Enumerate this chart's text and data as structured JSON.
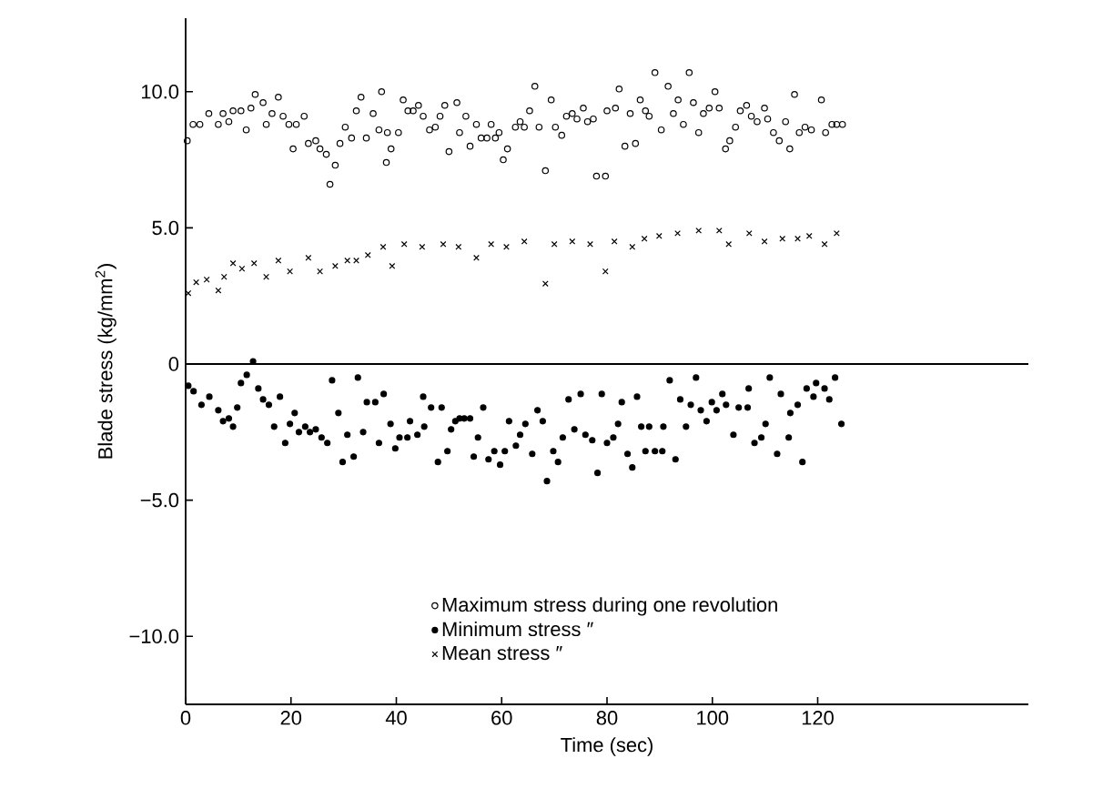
{
  "chart_data": {
    "type": "scatter",
    "xlabel": "Time (sec)",
    "ylabel": "Blade stress (kg/mm$^{2}$)",
    "xlim": [
      0,
      160
    ],
    "ylim": [
      -12.5,
      12.7
    ],
    "xticks": [
      0,
      20,
      40,
      60,
      80,
      100,
      120
    ],
    "yticks": [
      {
        "value": 10,
        "label": "10.0"
      },
      {
        "value": 5,
        "label": "5.0"
      },
      0,
      {
        "value": -5,
        "label": "−5.0"
      },
      {
        "value": -10,
        "label": "−10.0"
      }
    ],
    "legend": "bottom",
    "grid": false,
    "ref_lines": [
      {
        "axis": "y",
        "value": 0,
        "color": "#000000"
      }
    ],
    "series": [
      {
        "name": "Maximum stress during one revolution",
        "color": "#000000",
        "marker": "circle_open",
        "x": [
          0.3,
          1.4,
          2.7,
          4.4,
          6.2,
          7.1,
          8.2,
          9.0,
          10.5,
          11.5,
          12.4,
          13.2,
          14.7,
          15.3,
          16.4,
          17.6,
          18.5,
          19.6,
          20.4,
          21.0,
          22.5,
          23.3,
          24.7,
          25.5,
          26.7,
          27.4,
          28.4,
          29.3,
          30.3,
          31.5,
          32.4,
          33.3,
          34.3,
          35.6,
          36.7,
          37.2,
          38.1,
          38.3,
          39.0,
          40.4,
          41.3,
          42.2,
          43.2,
          44.2,
          45.1,
          46.3,
          47.4,
          48.3,
          49.2,
          50.0,
          51.5,
          52.0,
          53.2,
          54.0,
          55.2,
          56.1,
          57.2,
          58.0,
          58.8,
          59.5,
          60.3,
          61.1,
          62.6,
          63.5,
          64.3,
          65.3,
          66.3,
          67.1,
          68.3,
          69.4,
          70.2,
          71.4,
          72.3,
          73.4,
          74.3,
          75.5,
          76.3,
          77.4,
          78.0,
          79.7,
          80.0,
          81.6,
          82.3,
          83.4,
          84.4,
          85.4,
          86.3,
          87.3,
          88.0,
          89.1,
          90.3,
          91.6,
          92.6,
          93.5,
          94.5,
          95.6,
          96.4,
          97.4,
          98.3,
          99.4,
          100.5,
          101.3,
          102.5,
          103.3,
          104.4,
          105.3,
          106.5,
          107.4,
          108.5,
          109.9,
          110.5,
          111.6,
          112.7,
          113.9,
          114.7,
          115.6,
          116.5,
          117.6,
          118.8,
          120.7,
          121.5,
          122.7,
          123.6,
          124.7
        ],
        "values": [
          8.2,
          8.8,
          8.8,
          9.2,
          8.8,
          9.2,
          8.9,
          9.3,
          9.3,
          8.6,
          9.4,
          9.9,
          9.6,
          8.8,
          9.2,
          9.8,
          9.1,
          8.8,
          7.9,
          8.8,
          9.1,
          8.1,
          8.2,
          7.9,
          7.7,
          6.6,
          7.3,
          8.1,
          8.7,
          8.3,
          9.3,
          9.8,
          8.3,
          9.2,
          8.6,
          10.0,
          7.4,
          8.5,
          7.9,
          8.5,
          9.7,
          9.3,
          9.3,
          9.5,
          9.1,
          8.6,
          8.7,
          9.1,
          9.5,
          7.8,
          9.6,
          8.5,
          9.1,
          8.0,
          8.8,
          8.3,
          8.3,
          8.8,
          8.3,
          8.5,
          7.5,
          7.9,
          8.7,
          8.9,
          8.7,
          9.3,
          10.2,
          8.7,
          7.1,
          9.7,
          8.7,
          8.4,
          9.1,
          9.2,
          9.0,
          9.4,
          8.9,
          9.0,
          6.9,
          6.9,
          9.3,
          9.4,
          10.1,
          8.0,
          9.2,
          8.1,
          9.7,
          9.3,
          9.1,
          10.7,
          8.6,
          10.2,
          9.2,
          9.7,
          8.8,
          10.7,
          9.6,
          8.5,
          9.2,
          9.4,
          10.0,
          9.4,
          7.9,
          8.2,
          8.7,
          9.3,
          9.5,
          9.1,
          8.9,
          9.4,
          9.0,
          8.5,
          8.2,
          8.9,
          7.9,
          9.9,
          8.5,
          8.7,
          8.6,
          9.7,
          8.5,
          8.8,
          8.8,
          8.8
        ]
      },
      {
        "name": "Minimum stress ″",
        "color": "#000000",
        "marker": "circle",
        "x": [
          0.5,
          1.5,
          3.0,
          4.5,
          6.2,
          7.1,
          8.2,
          9.0,
          9.8,
          10.5,
          11.6,
          12.8,
          13.8,
          14.7,
          15.8,
          16.8,
          17.9,
          18.9,
          19.8,
          20.7,
          21.5,
          22.7,
          23.6,
          24.7,
          25.8,
          26.9,
          27.8,
          29.0,
          29.8,
          30.7,
          31.9,
          32.7,
          33.7,
          34.4,
          36.0,
          36.7,
          37.6,
          38.9,
          39.8,
          40.6,
          42.1,
          42.6,
          44.0,
          45.1,
          45.3,
          46.6,
          48.6,
          47.9,
          49.7,
          50.4,
          51.2,
          52.0,
          52.9,
          54.0,
          54.7,
          55.5,
          56.5,
          57.5,
          58.6,
          59.7,
          60.6,
          61.4,
          62.7,
          63.5,
          64.5,
          65.8,
          66.8,
          67.8,
          68.6,
          69.8,
          70.7,
          71.6,
          72.7,
          73.8,
          75.0,
          75.9,
          77.2,
          78.2,
          79.0,
          80.0,
          81.2,
          82.1,
          82.8,
          83.9,
          84.8,
          85.7,
          86.5,
          87.3,
          88.0,
          89.1,
          90.5,
          90.7,
          91.9,
          93.0,
          93.9,
          95.0,
          95.9,
          96.9,
          97.8,
          98.9,
          99.9,
          100.8,
          101.9,
          102.6,
          104.0,
          105.0,
          106.7,
          106.9,
          108.0,
          109.3,
          110.1,
          110.9,
          112.3,
          113.0,
          114.5,
          114.8,
          116.2,
          117.1,
          117.9,
          119.2,
          119.7,
          121.3,
          122.2,
          123.3,
          124.5
        ],
        "values": [
          -0.8,
          -1.0,
          -1.5,
          -1.2,
          -1.7,
          -2.1,
          -2.0,
          -2.3,
          -1.6,
          -0.7,
          -0.4,
          0.1,
          -0.9,
          -1.3,
          -1.5,
          -2.3,
          -1.2,
          -2.9,
          -2.2,
          -1.8,
          -2.5,
          -2.3,
          -2.5,
          -2.4,
          -2.7,
          -2.9,
          -0.6,
          -1.8,
          -3.6,
          -2.6,
          -3.4,
          -0.5,
          -2.5,
          -1.4,
          -1.4,
          -2.9,
          -1.1,
          -2.2,
          -3.1,
          -2.7,
          -2.7,
          -2.1,
          -2.6,
          -1.2,
          -2.3,
          -1.6,
          -1.6,
          -3.6,
          -3.2,
          -2.4,
          -2.1,
          -2.0,
          -2.0,
          -2.0,
          -3.4,
          -2.7,
          -1.6,
          -3.5,
          -3.2,
          -3.7,
          -3.2,
          -2.1,
          -3.0,
          -2.6,
          -2.2,
          -3.3,
          -1.7,
          -2.1,
          -4.3,
          -3.2,
          -3.6,
          -2.7,
          -1.3,
          -2.4,
          -1.1,
          -2.6,
          -2.8,
          -4.0,
          -1.1,
          -2.9,
          -2.7,
          -2.2,
          -1.4,
          -3.3,
          -3.8,
          -1.2,
          -2.3,
          -3.2,
          -2.3,
          -3.2,
          -3.2,
          -2.3,
          -0.6,
          -3.5,
          -1.3,
          -2.3,
          -1.5,
          -0.5,
          -1.7,
          -2.1,
          -1.4,
          -1.7,
          -1.1,
          -1.5,
          -2.6,
          -1.6,
          -1.6,
          -0.9,
          -2.9,
          -2.7,
          -2.2,
          -0.5,
          -3.3,
          -1.1,
          -2.7,
          -1.8,
          -1.5,
          -3.6,
          -0.9,
          -1.2,
          -0.7,
          -0.9,
          -1.3,
          -0.5,
          -2.2
        ]
      },
      {
        "name": "Mean stress ″",
        "color": "#000000",
        "marker": "cross",
        "x": [
          0.5,
          2.0,
          4.0,
          6.2,
          7.3,
          9.0,
          10.7,
          13.0,
          15.3,
          17.6,
          19.8,
          23.3,
          25.5,
          28.4,
          30.7,
          32.4,
          34.6,
          37.5,
          39.2,
          41.5,
          44.9,
          48.9,
          51.8,
          55.2,
          58.0,
          60.9,
          64.3,
          68.3,
          70.0,
          73.4,
          76.8,
          79.7,
          81.4,
          84.8,
          87.1,
          89.9,
          93.4,
          97.4,
          101.3,
          103.1,
          107.0,
          109.9,
          113.3,
          116.2,
          118.4,
          121.3,
          123.6
        ],
        "values": [
          2.6,
          3.0,
          3.1,
          2.7,
          3.2,
          3.7,
          3.5,
          3.7,
          3.2,
          3.8,
          3.4,
          3.9,
          3.4,
          3.6,
          3.8,
          3.8,
          4.0,
          4.3,
          3.6,
          4.4,
          4.3,
          4.4,
          4.3,
          3.9,
          4.4,
          4.3,
          4.5,
          2.95,
          4.4,
          4.5,
          4.4,
          3.4,
          4.5,
          4.3,
          4.6,
          4.7,
          4.8,
          4.9,
          4.9,
          4.4,
          4.8,
          4.5,
          4.6,
          4.6,
          4.7,
          4.4,
          4.8
        ]
      }
    ]
  }
}
